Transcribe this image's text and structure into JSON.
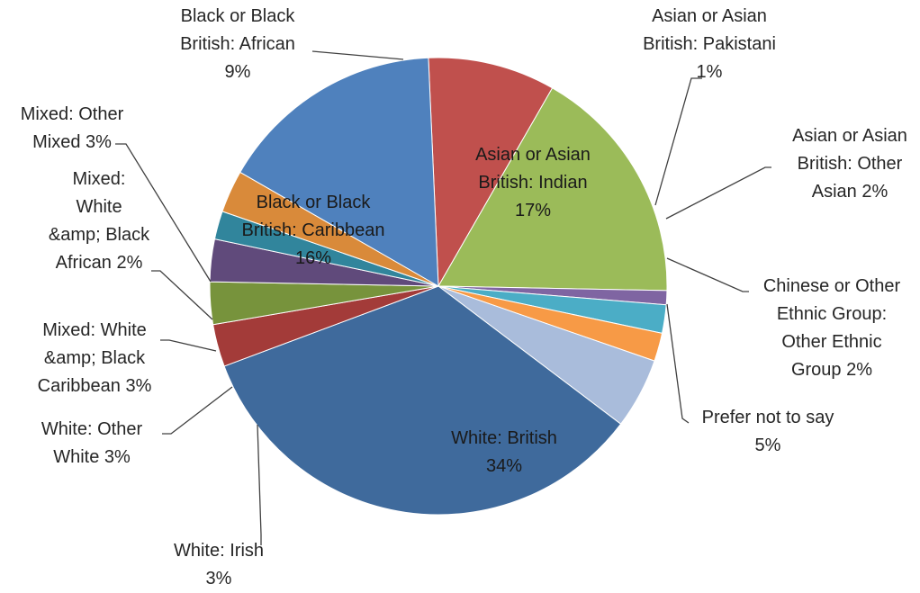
{
  "chart_data": {
    "type": "pie",
    "title": "",
    "series": [
      {
        "values": [
          34,
          5,
          2,
          2,
          1,
          17,
          9,
          16,
          3,
          2,
          3,
          3,
          3
        ]
      }
    ],
    "categories": [
      "White: British",
      "Prefer not to say",
      "Chinese or Other Ethnic Group: Other Ethnic Group",
      "Asian or Asian British: Other Asian",
      "Asian or Asian British: Pakistani",
      "Asian or Asian British: Indian",
      "Black or Black British: African",
      "Black or Black British: Caribbean",
      "Mixed: Other Mixed",
      "Mixed: White &amp; Black African",
      "Mixed: White &amp; Black Caribbean",
      "White: Other White",
      "White: Irish"
    ],
    "colors": [
      "#3F6A9C",
      "#A9BCDB",
      "#F79A46",
      "#4BADC6",
      "#7F65A2",
      "#9BBB59",
      "#C0504D",
      "#4F81BD",
      "#D98A3A",
      "#31859C",
      "#604A7B",
      "#77933C",
      "#A33B39"
    ],
    "labels": [
      {
        "lines": [
          "White: British",
          "34%"
        ]
      },
      {
        "lines": [
          "Prefer not to say",
          "5%"
        ]
      },
      {
        "lines": [
          "Chinese or Other",
          "Ethnic Group:",
          "Other Ethnic",
          "Group 2%"
        ]
      },
      {
        "lines": [
          "Asian or Asian",
          "British: Other",
          "Asian 2%"
        ]
      },
      {
        "lines": [
          "Asian or Asian",
          "British: Pakistani",
          "1%"
        ]
      },
      {
        "lines": [
          "Asian or Asian",
          "British: Indian",
          "17%"
        ]
      },
      {
        "lines": [
          "Black or Black",
          "British: African",
          "9%"
        ]
      },
      {
        "lines": [
          "Black or Black",
          "British: Caribbean",
          "16%"
        ]
      },
      {
        "lines": [
          "Mixed: Other",
          "Mixed 3%"
        ]
      },
      {
        "lines": [
          "Mixed:",
          "White",
          "&amp; Black",
          "African 2%"
        ]
      },
      {
        "lines": [
          "Mixed: White",
          "&amp; Black",
          "Caribbean 3%"
        ]
      },
      {
        "lines": [
          "White: Other",
          "White 3%"
        ]
      },
      {
        "lines": [
          "White: Irish",
          "3%"
        ]
      }
    ]
  }
}
